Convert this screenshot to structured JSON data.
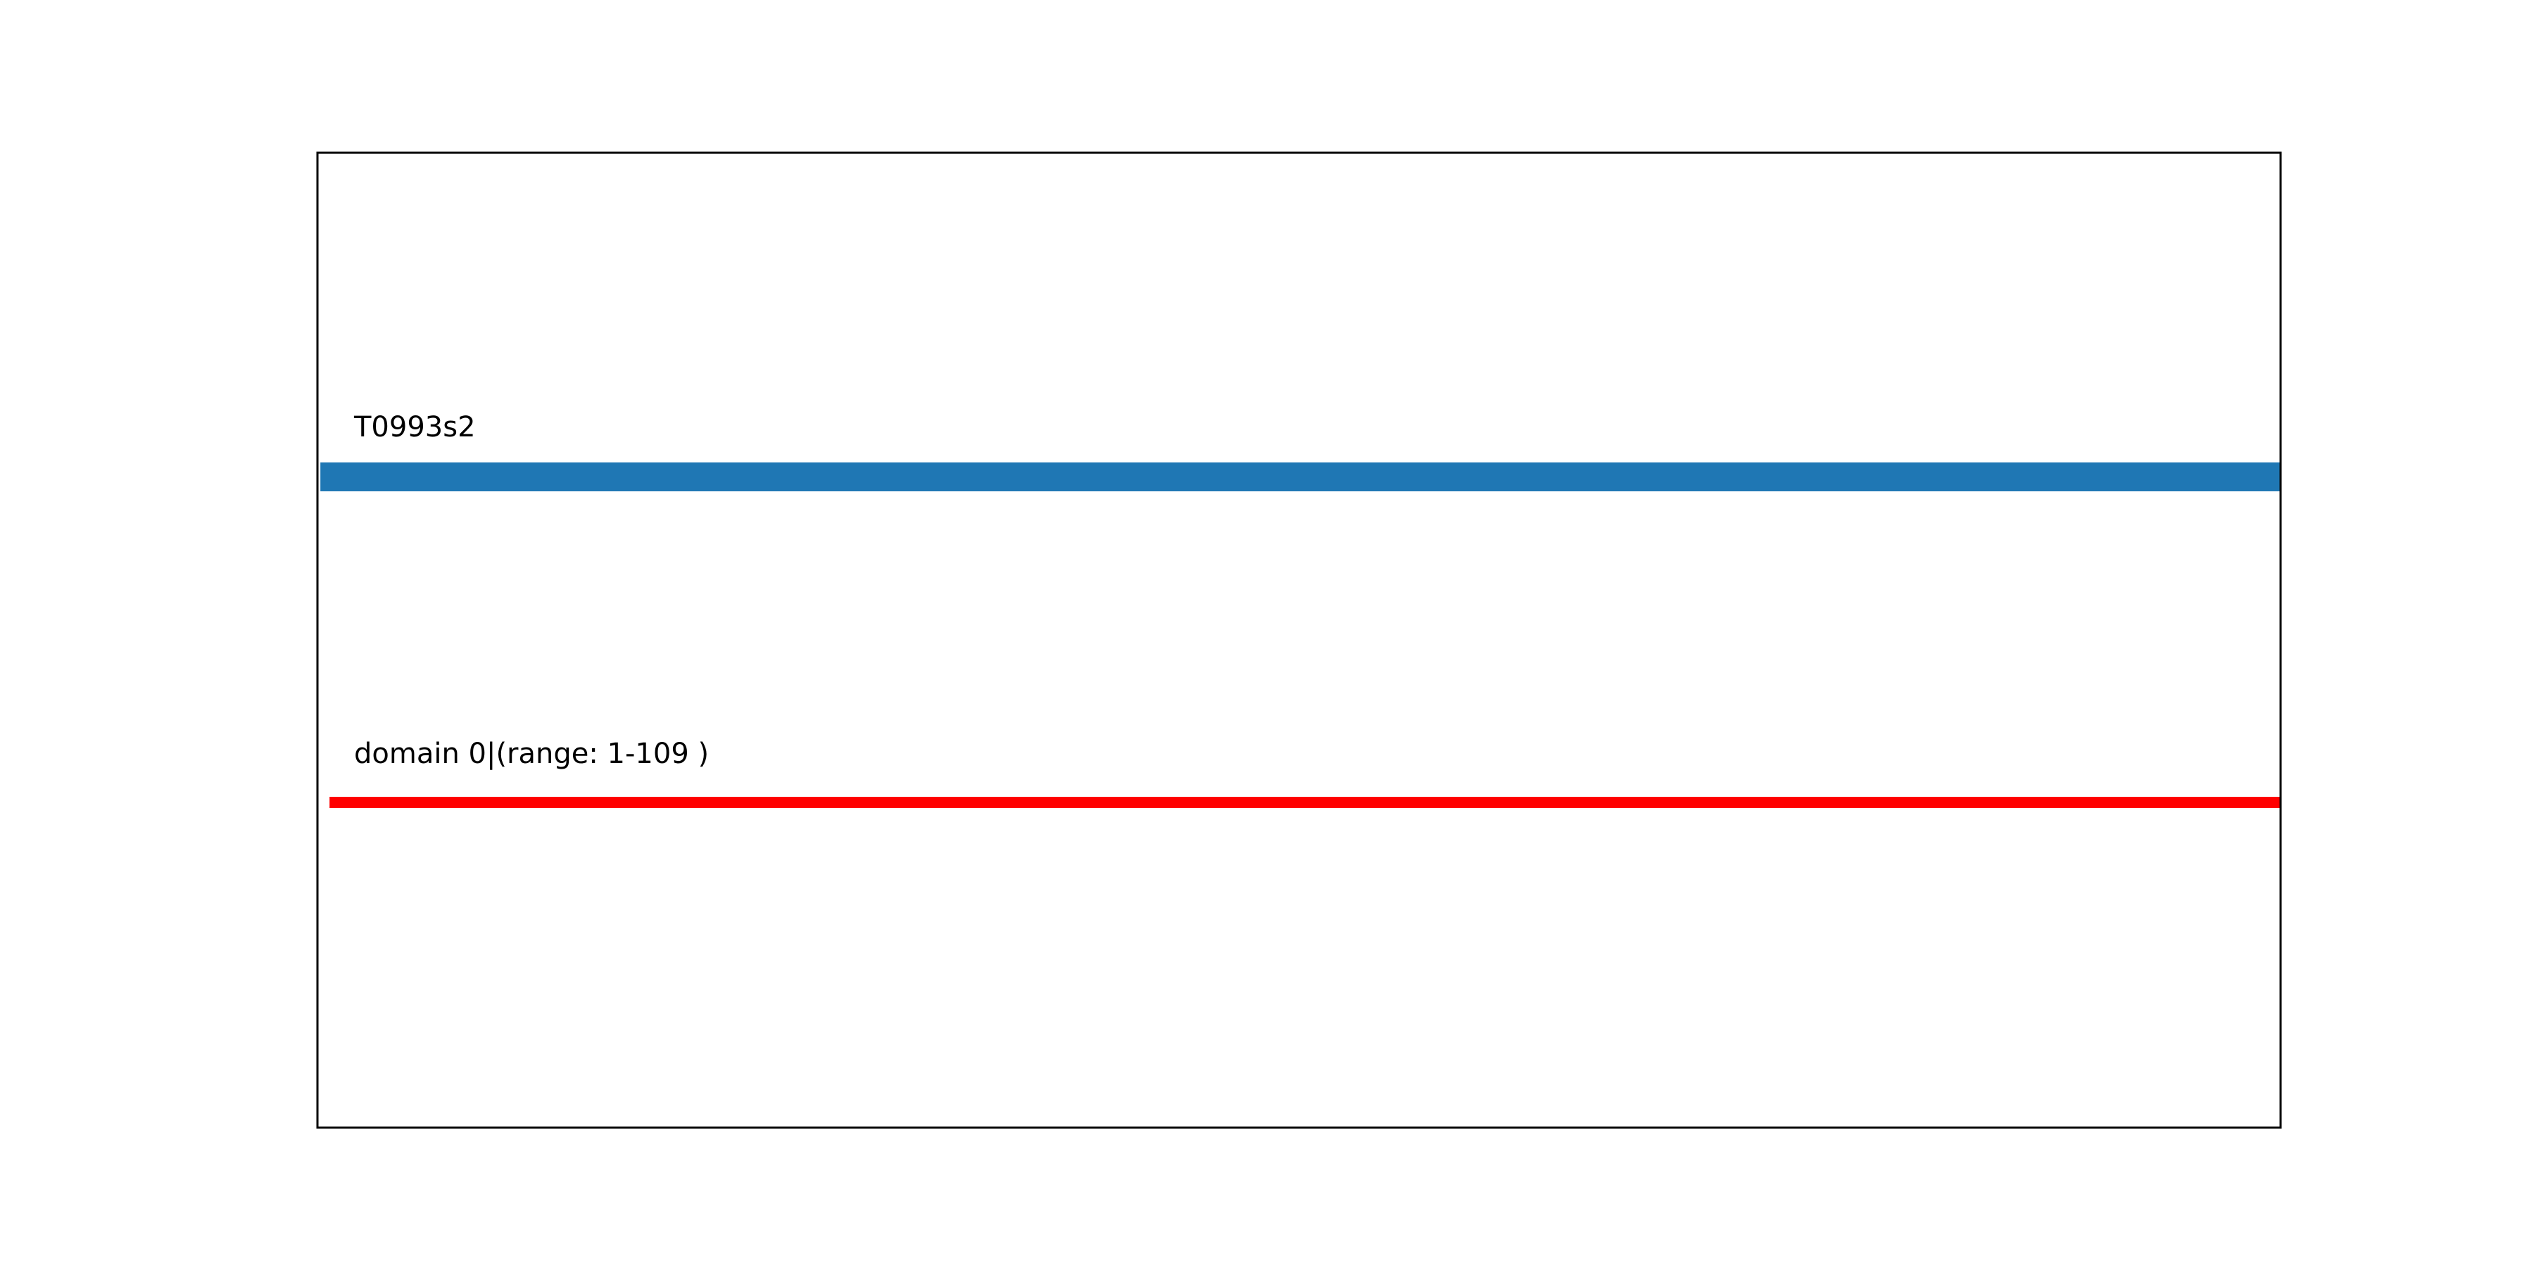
{
  "chart_data": {
    "type": "bar",
    "orientation": "horizontal",
    "xlim": [
      0.8,
      109
    ],
    "grid": false,
    "axes_ticks": false,
    "tracks": [
      {
        "label": "T0993s2",
        "start": 1,
        "end": 109,
        "color": "#1f77b4",
        "kind": "sequence"
      },
      {
        "label": "domain 0|(range: 1-109 )",
        "start": 1,
        "end": 109,
        "color": "#ff0000",
        "kind": "domain"
      }
    ]
  }
}
